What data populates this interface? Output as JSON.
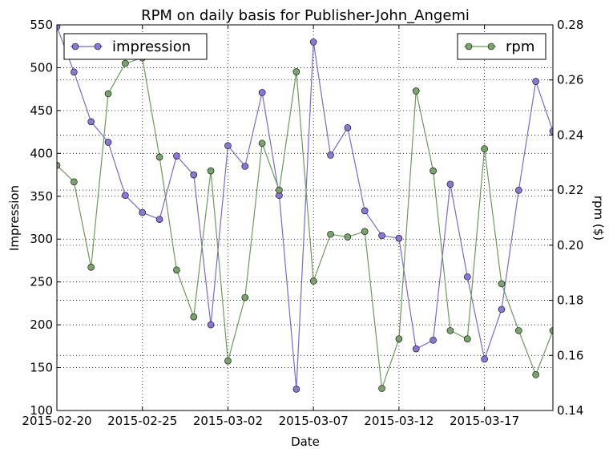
{
  "chart_data": {
    "type": "line",
    "title": "RPM on daily basis for Publisher-John_Angemi",
    "xlabel": "Date",
    "ylabel_left": "Impression",
    "ylabel_right": "rpm ($)",
    "xlim": [
      "2015-02-20",
      "2015-03-21"
    ],
    "ylim_left": [
      100,
      550
    ],
    "ylim_right": [
      0.14,
      0.28
    ],
    "x_ticks": [
      "2015-02-20",
      "2015-02-25",
      "2015-03-02",
      "2015-03-07",
      "2015-03-12",
      "2015-03-17"
    ],
    "y_ticks_left": [
      100,
      150,
      200,
      250,
      300,
      350,
      400,
      450,
      500,
      550
    ],
    "y_ticks_right": [
      "0.14",
      "0.16",
      "0.18",
      "0.20",
      "0.22",
      "0.24",
      "0.26",
      "0.28"
    ],
    "grid": true,
    "x": [
      "2015-02-20",
      "2015-02-21",
      "2015-02-22",
      "2015-02-23",
      "2015-02-24",
      "2015-02-25",
      "2015-02-26",
      "2015-02-27",
      "2015-02-28",
      "2015-03-01",
      "2015-03-02",
      "2015-03-03",
      "2015-03-04",
      "2015-03-05",
      "2015-03-06",
      "2015-03-07",
      "2015-03-08",
      "2015-03-09",
      "2015-03-10",
      "2015-03-11",
      "2015-03-12",
      "2015-03-13",
      "2015-03-14",
      "2015-03-15",
      "2015-03-16",
      "2015-03-17",
      "2015-03-18",
      "2015-03-19",
      "2015-03-20",
      "2015-03-21"
    ],
    "series": [
      {
        "name": "impression",
        "axis": "left",
        "color": "#7b68d4",
        "marker_fill": "#8a77d8",
        "legend_position": "top-left",
        "values": [
          548,
          495,
          437,
          413,
          351,
          331,
          323,
          397,
          375,
          200,
          409,
          385,
          471,
          351,
          125,
          530,
          398,
          430,
          333,
          304,
          301,
          172,
          182,
          364,
          256,
          160,
          218,
          357,
          484,
          426
        ]
      },
      {
        "name": "rpm",
        "axis": "right",
        "color": "#6b9a5c",
        "marker_fill": "#79a56c",
        "legend_position": "top-right",
        "values": [
          0.229,
          0.223,
          0.192,
          0.255,
          0.266,
          0.268,
          0.232,
          0.191,
          0.174,
          0.227,
          0.158,
          0.181,
          0.237,
          0.22,
          0.263,
          0.187,
          0.204,
          0.203,
          0.205,
          0.148,
          0.166,
          0.256,
          0.227,
          0.169,
          0.166,
          0.235,
          0.186,
          0.169,
          0.153,
          0.169
        ]
      }
    ]
  }
}
